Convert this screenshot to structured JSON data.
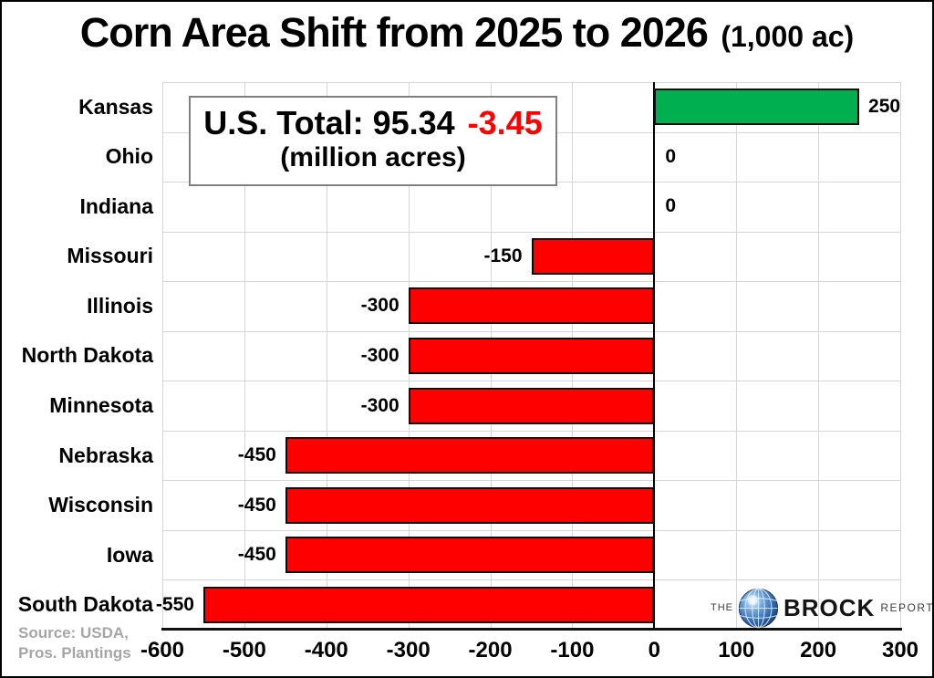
{
  "header": {
    "title": "Corn Area Shift from 2025 to 2026",
    "unit": "(1,000 ac)"
  },
  "annotation": {
    "total_text": "U.S. Total: 95.34",
    "change_text": "-3.45",
    "unit_text": "(million acres)"
  },
  "source": {
    "line1": "Source: USDA,",
    "line2": "Pros. Plantings"
  },
  "logo": {
    "the": "THE",
    "brock": "BROCK",
    "report": "REPORT",
    "globe_icon": "globe-icon"
  },
  "colors": {
    "positive_bar": "#00B050",
    "negative_bar": "#FF0000",
    "annotation_change": "#FF0000",
    "gridline": "#D6D6D6",
    "source_text": "#A6A6A6",
    "zero_line": "#000000"
  },
  "chart_data": {
    "type": "bar",
    "orientation": "horizontal",
    "title": "Corn Area Shift from 2025 to 2026 (1,000 ac)",
    "categories": [
      "Kansas",
      "Ohio",
      "Indiana",
      "Missouri",
      "Illinois",
      "North Dakota",
      "Minnesota",
      "Nebraska",
      "Wisconsin",
      "Iowa",
      "South Dakota"
    ],
    "values": [
      250,
      0,
      0,
      -150,
      -300,
      -300,
      -300,
      -450,
      -450,
      -450,
      -550
    ],
    "xlim": [
      -600,
      300
    ],
    "x_ticks": [
      -600,
      -500,
      -400,
      -300,
      -200,
      -100,
      0,
      100,
      200,
      300
    ],
    "grid": true,
    "data_labels": true,
    "legend": "none",
    "bar_color_positive": "#00B050",
    "bar_color_negative": "#FF0000"
  }
}
